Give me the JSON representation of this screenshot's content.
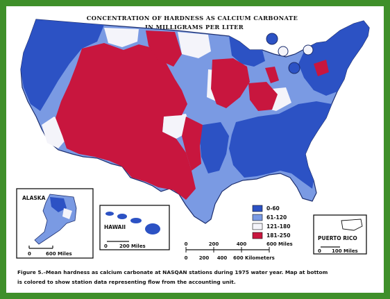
{
  "map": {
    "title_line1": "CONCENTRATION OF HARDNESS AS CALCIUM CARBONATE",
    "title_line2": "IN MILLIGRAMS PER LITER",
    "legend": [
      {
        "label": "0-60",
        "color": "#2c52c4"
      },
      {
        "label": "61-120",
        "color": "#7a9ae3"
      },
      {
        "label": "121-180",
        "color": "#f4f4fa"
      },
      {
        "label": "181-250",
        "color": "#c8163e"
      }
    ],
    "insets": {
      "alaska": {
        "name": "ALASKA",
        "scale_zero": "0",
        "scale_label": "600 Miles"
      },
      "hawaii": {
        "name": "HAWAII",
        "scale_zero": "0",
        "scale_label": "200 Miles"
      },
      "puerto_rico": {
        "name": "PUERTO RICO",
        "scale_zero": "0",
        "scale_label": "100 Miles"
      }
    },
    "scale": {
      "miles": [
        "0",
        "200",
        "400",
        "600 Miles"
      ],
      "km": [
        "0",
        "200",
        "400",
        "600 Kilometers"
      ]
    },
    "caption_line1": "Figure 5.–Mean hardness as calcium carbonate at NASQAN stations during 1975 water year.  Map at bottom",
    "caption_line2": "is colored to show station data representing flow from the accounting unit.",
    "colors": {
      "frame": "#3f8f2a",
      "dark_blue": "#2c52c4",
      "light_blue": "#7a9ae3",
      "white": "#f4f4fa",
      "red": "#c8163e"
    }
  }
}
